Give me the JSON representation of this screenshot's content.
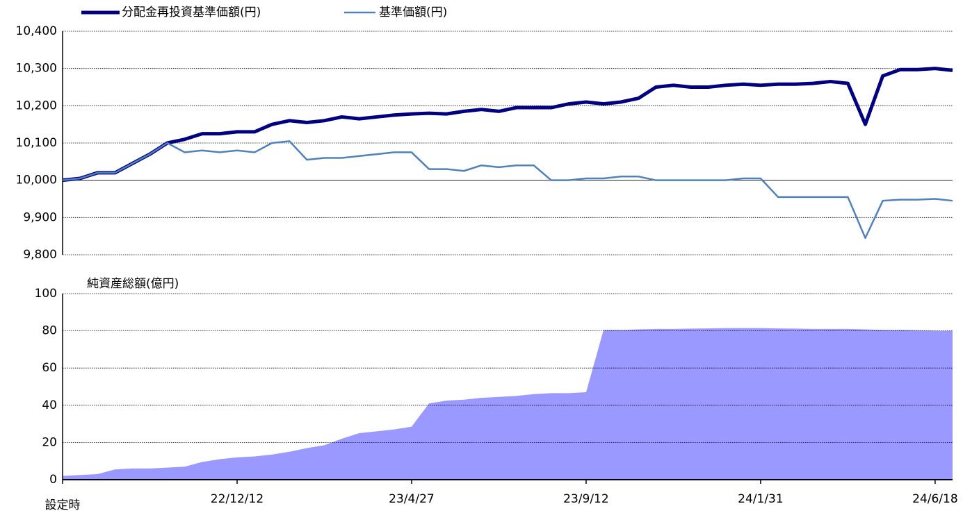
{
  "chart_data": [
    {
      "type": "line",
      "series": [
        {
          "name": "分配金再投資基準価額(円)",
          "color": "#000080",
          "width": 5,
          "values": [
            10000,
            10005,
            10020,
            10020,
            10045,
            10070,
            10100,
            10110,
            10125,
            10125,
            10130,
            10130,
            10150,
            10160,
            10155,
            10160,
            10170,
            10165,
            10170,
            10175,
            10178,
            10180,
            10178,
            10185,
            10190,
            10185,
            10195,
            10195,
            10195,
            10205,
            10210,
            10205,
            10210,
            10220,
            10250,
            10255,
            10250,
            10250,
            10255,
            10258,
            10255,
            10258,
            10258,
            10260,
            10265,
            10260,
            10150,
            10280,
            10297,
            10297,
            10300,
            10295
          ]
        },
        {
          "name": "基準価額(円)",
          "color": "#4f81bd",
          "width": 2.5,
          "values": [
            10000,
            10005,
            10020,
            10020,
            10045,
            10070,
            10100,
            10075,
            10080,
            10075,
            10080,
            10075,
            10100,
            10105,
            10055,
            10060,
            10060,
            10065,
            10070,
            10075,
            10075,
            10030,
            10030,
            10025,
            10040,
            10035,
            10040,
            10040,
            10000,
            10000,
            10005,
            10005,
            10010,
            10010,
            10000,
            10000,
            10000,
            10000,
            10000,
            10005,
            10005,
            9955,
            9955,
            9955,
            9955,
            9955,
            9845,
            9945,
            9948,
            9948,
            9950,
            9945
          ]
        }
      ],
      "ylim": [
        9800,
        10400
      ],
      "yticks": [
        {
          "value": 9800,
          "label": "9,800"
        },
        {
          "value": 9900,
          "label": "9,900"
        },
        {
          "value": 10000,
          "label": "10,000"
        },
        {
          "value": 10100,
          "label": "10,100"
        },
        {
          "value": 10200,
          "label": "10,200"
        },
        {
          "value": 10300,
          "label": "10,300"
        },
        {
          "value": 10400,
          "label": "10,400"
        }
      ],
      "grid": true,
      "legend": "top"
    },
    {
      "type": "area",
      "title": "純資産総額(億円)",
      "color": "#9999ff",
      "categories": [
        "設定時",
        null,
        null,
        null,
        null,
        null,
        null,
        null,
        null,
        null,
        "22/12/12",
        null,
        null,
        null,
        null,
        null,
        null,
        null,
        null,
        null,
        "23/4/27",
        null,
        null,
        null,
        null,
        null,
        null,
        null,
        null,
        null,
        "23/9/12",
        null,
        null,
        null,
        null,
        null,
        null,
        null,
        null,
        null,
        "24/1/31",
        null,
        null,
        null,
        null,
        null,
        null,
        null,
        null,
        null,
        "24/6/18",
        null
      ],
      "values": [
        2,
        2.5,
        3,
        5.5,
        6,
        6,
        6.5,
        7,
        9.5,
        11,
        12,
        12.5,
        13.5,
        15,
        17,
        18.5,
        22,
        25,
        26,
        27,
        28.5,
        41,
        42.5,
        43,
        44,
        44.5,
        45,
        46,
        46.5,
        46.5,
        47,
        80.5,
        80.5,
        80.8,
        81,
        81,
        81.2,
        81.3,
        81.5,
        81.5,
        81.5,
        81.3,
        81.2,
        81,
        81,
        81,
        80.8,
        80.5,
        80.5,
        80.3,
        80,
        80
      ],
      "ylim": [
        0,
        100
      ],
      "yticks": [
        0,
        20,
        40,
        60,
        80,
        100
      ],
      "grid": true
    }
  ]
}
